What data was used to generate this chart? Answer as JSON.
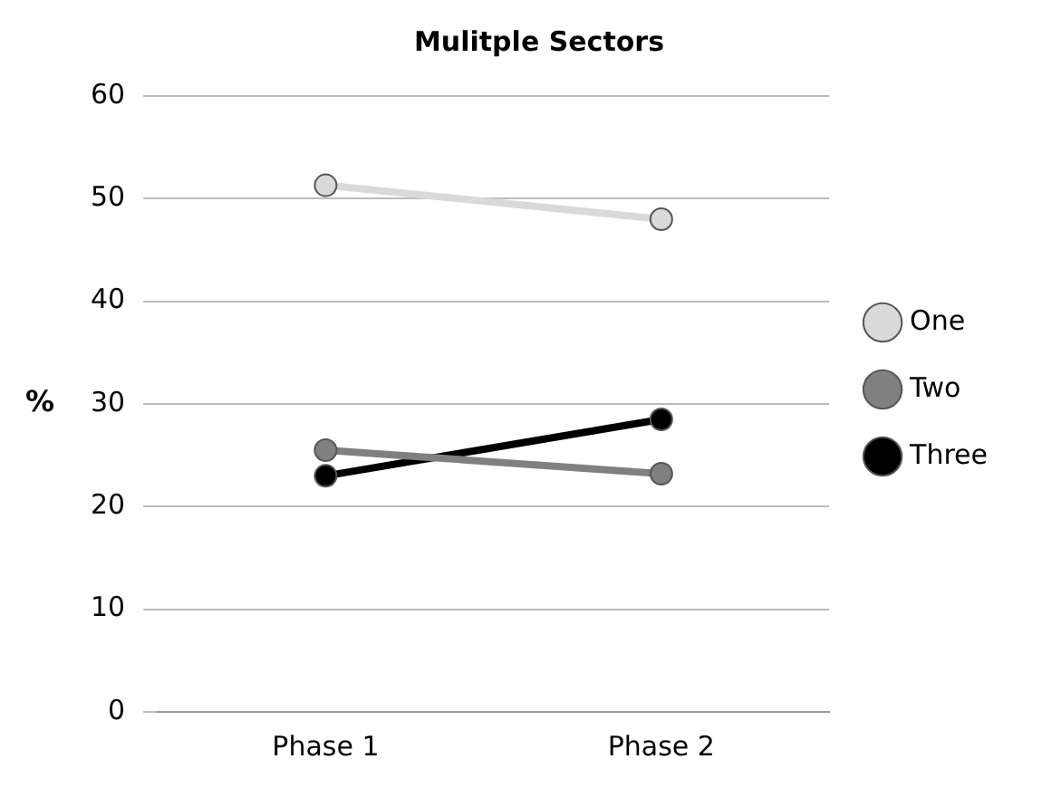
{
  "chart_data": {
    "type": "line",
    "title": "Mulitple Sectors",
    "ylabel": "%",
    "categories": [
      "Phase 1",
      "Phase 2"
    ],
    "series": [
      {
        "name": "One",
        "color": "#d9d9d9",
        "values": [
          51.3,
          48
        ]
      },
      {
        "name": "Two",
        "color": "#808080",
        "values": [
          25.5,
          23.2
        ]
      },
      {
        "name": "Three",
        "color": "#000000",
        "values": [
          23,
          28.5
        ]
      }
    ],
    "ylim": [
      0,
      60
    ],
    "yticks": [
      0,
      10,
      20,
      30,
      40,
      50,
      60
    ],
    "grid": "y",
    "legend": "right",
    "marker": "circle"
  }
}
